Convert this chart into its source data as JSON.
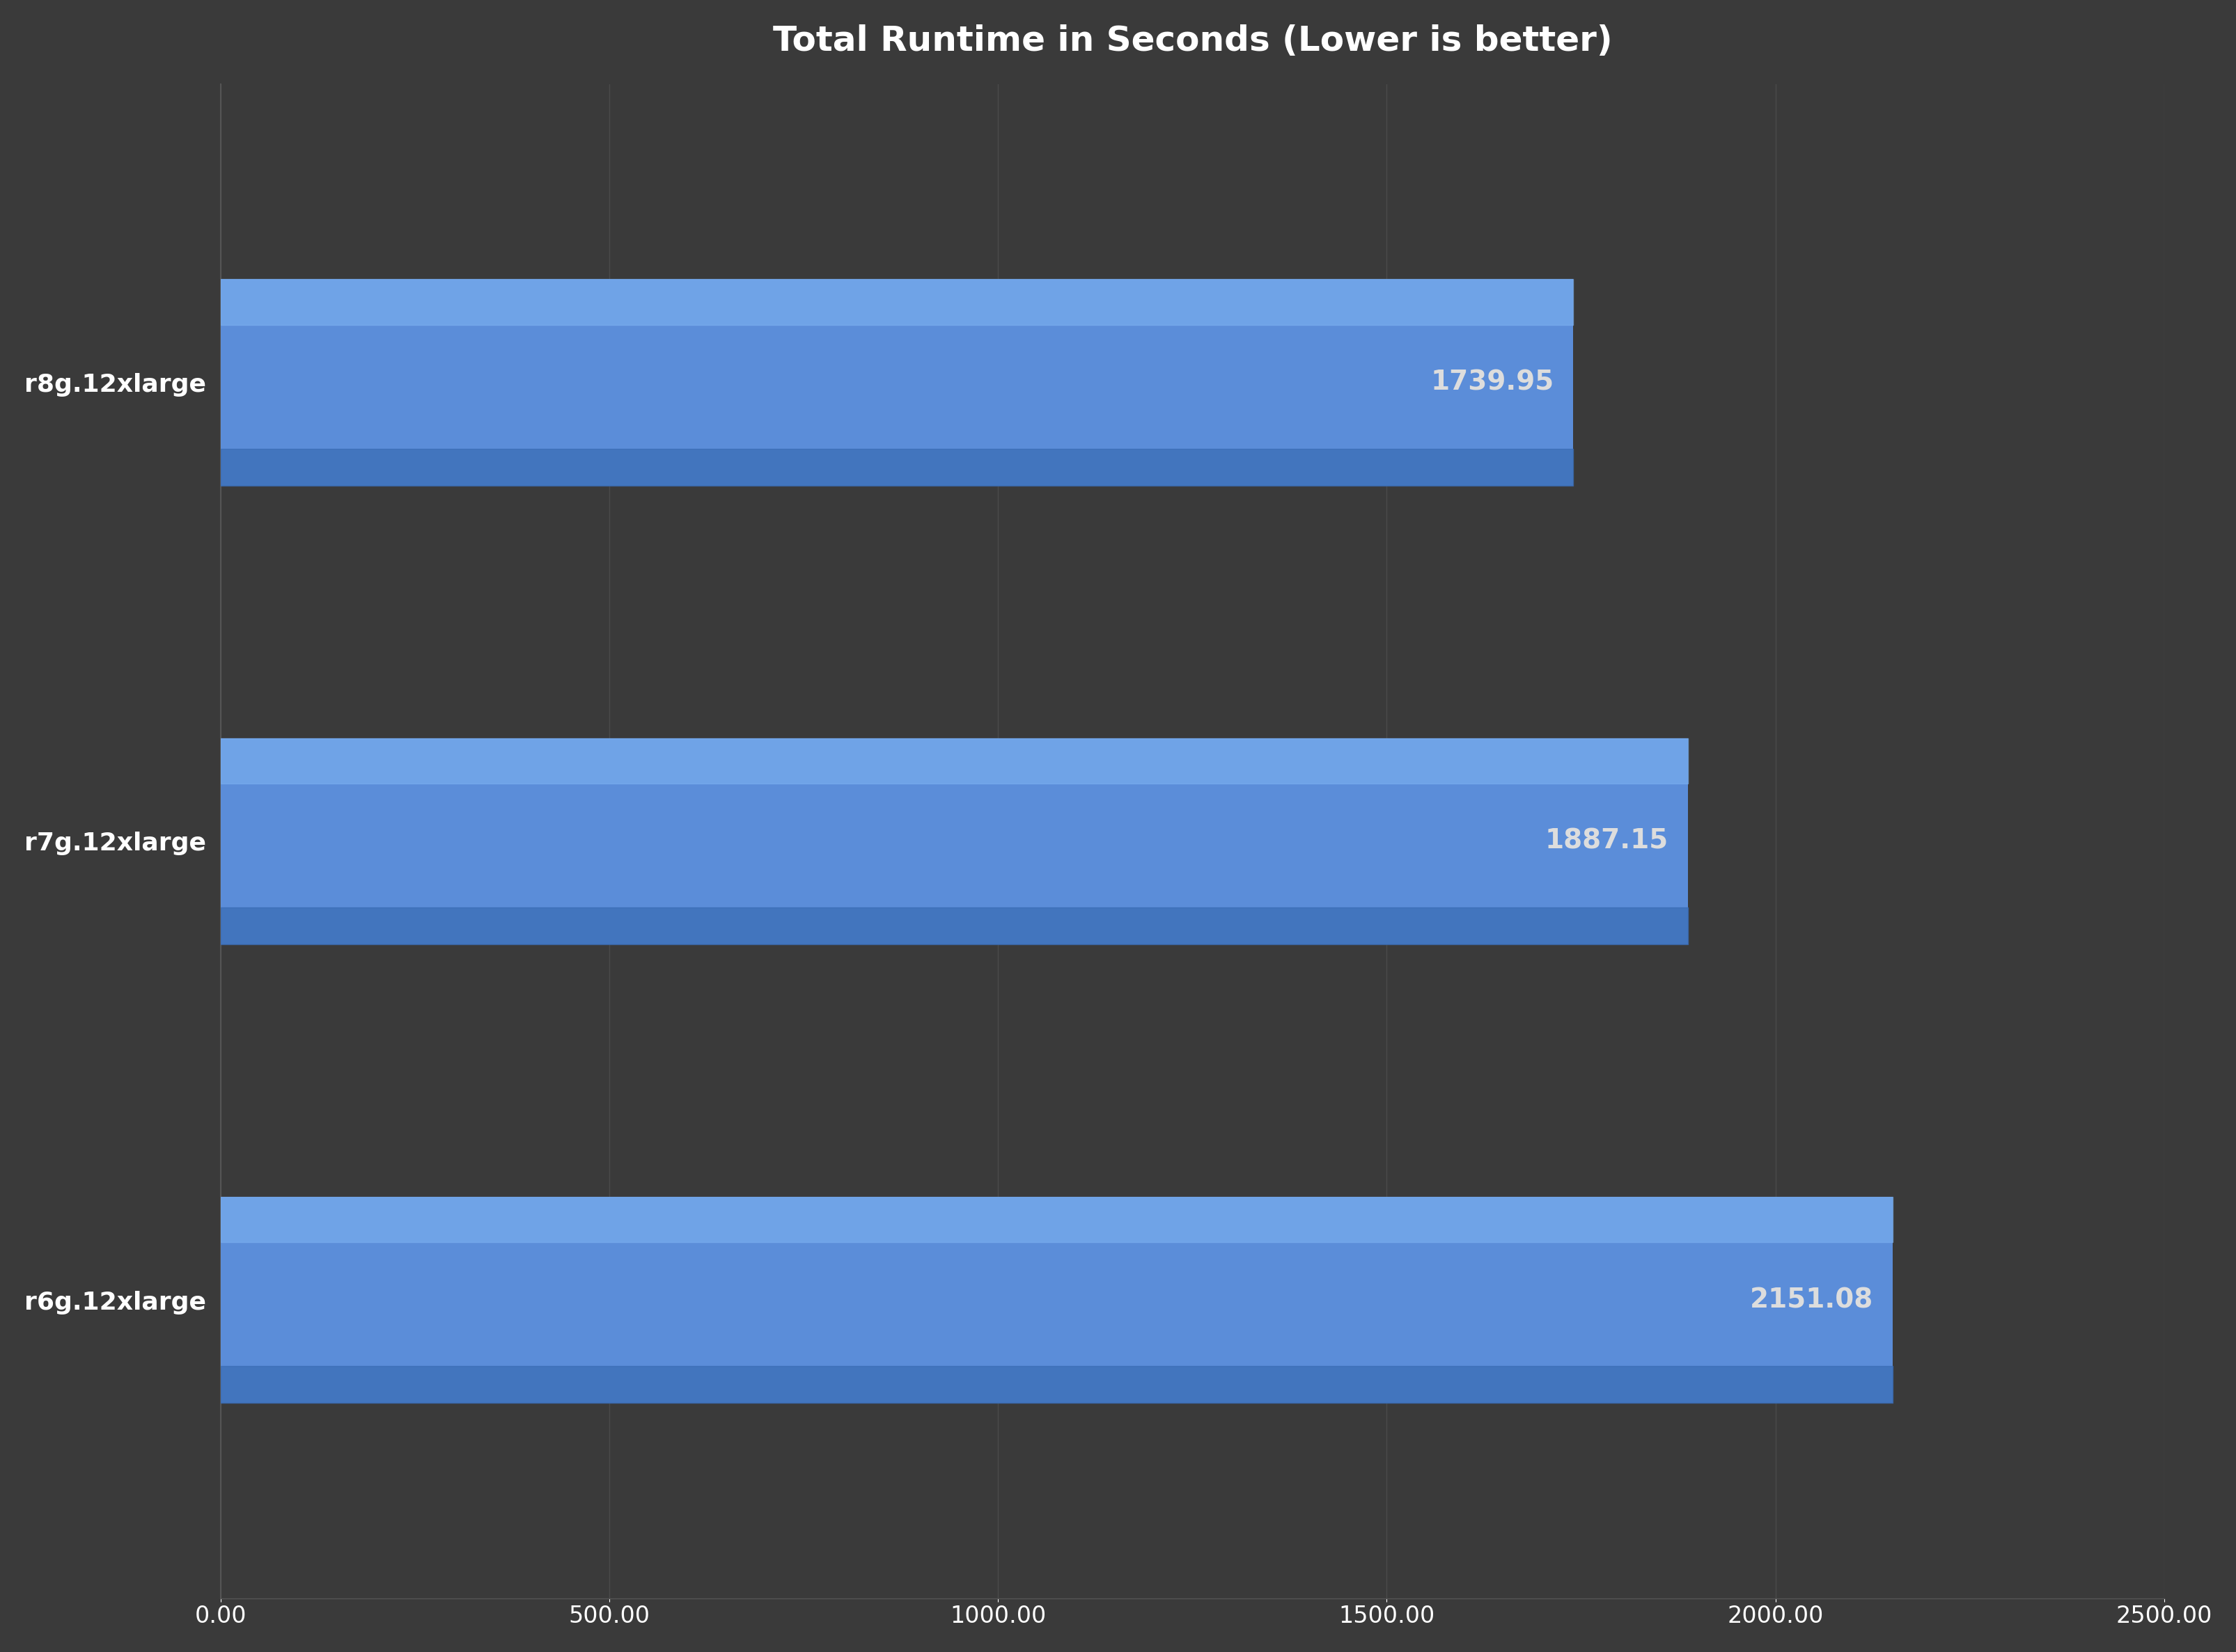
{
  "title": "Total Runtime in Seconds (Lower is better)",
  "categories": [
    "r6g.12xlarge",
    "r7g.12xlarge",
    "r8g.12xlarge"
  ],
  "values": [
    2151.08,
    1887.15,
    1739.95
  ],
  "bar_color_main": "#5B8DD9",
  "bar_color_light": "#7AAFF0",
  "bar_color_dark": "#3A6DB5",
  "value_labels": [
    "2151.08",
    "1887.15",
    "1739.95"
  ],
  "xlim": [
    0,
    2500
  ],
  "xticks": [
    0,
    500,
    1000,
    1500,
    2000,
    2500
  ],
  "xtick_labels": [
    "0.00",
    "500.00",
    "1000.00",
    "1500.00",
    "2000.00",
    "2500.00"
  ],
  "background_color": "#3a3a3a",
  "axes_background_color": "#3a3a3a",
  "grid_color": "#555555",
  "title_color": "#ffffff",
  "label_color": "#ffffff",
  "value_text_color": "#dddddd",
  "title_fontsize": 36,
  "label_fontsize": 26,
  "value_fontsize": 28,
  "tick_fontsize": 24,
  "bar_height": 0.45
}
